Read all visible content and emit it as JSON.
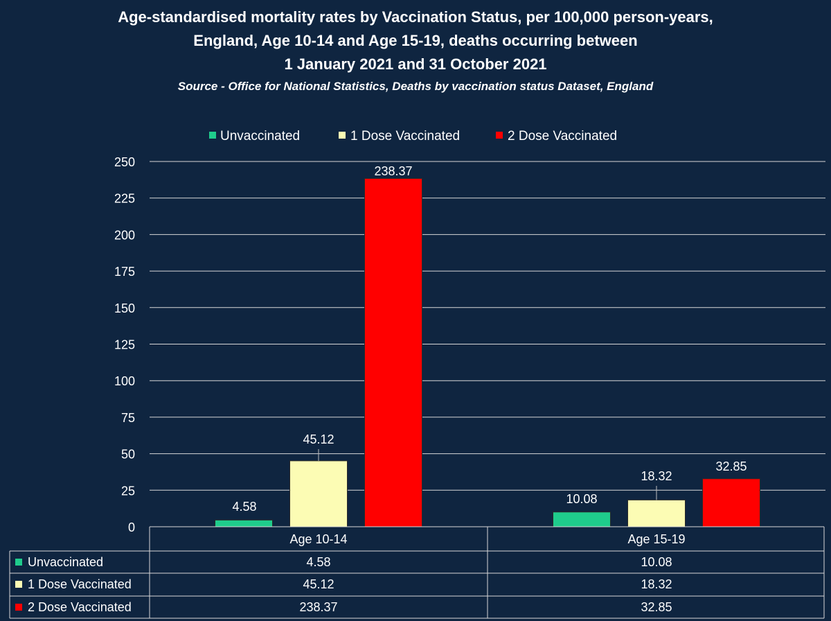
{
  "chart_data": {
    "type": "bar",
    "title_lines": [
      "Age-standardised mortality rates by Vaccination Status, per 100,000 person-years,",
      "England, Age 10-14 and Age 15-19, deaths occurring between",
      "1 January 2021 and 31 October 2021"
    ],
    "subtitle": "Source - Office for National Statistics, Deaths by vaccination status Dataset, England",
    "categories": [
      "Age 10-14",
      "Age 15-19"
    ],
    "series": [
      {
        "name": "Unvaccinated",
        "values": [
          4.58,
          10.08
        ],
        "labels": [
          "4.58",
          "10.08"
        ],
        "color": "#1fcc8c"
      },
      {
        "name": "1 Dose Vaccinated",
        "values": [
          45.12,
          18.32
        ],
        "labels": [
          "45.12",
          "18.32"
        ],
        "color": "#fcfcb4"
      },
      {
        "name": "2 Dose Vaccinated",
        "values": [
          238.37,
          32.85
        ],
        "labels": [
          "238.37",
          "32.85"
        ],
        "color": "#ff0000"
      }
    ],
    "ylim": [
      0,
      250
    ],
    "yticks": [
      0,
      25,
      50,
      75,
      100,
      125,
      150,
      175,
      200,
      225,
      250
    ],
    "grid": true,
    "legend_position": "top",
    "data_table": true,
    "colors": {
      "background": "#0f2540",
      "text": "#ffffff",
      "gridline": "#d8d8d8"
    }
  }
}
